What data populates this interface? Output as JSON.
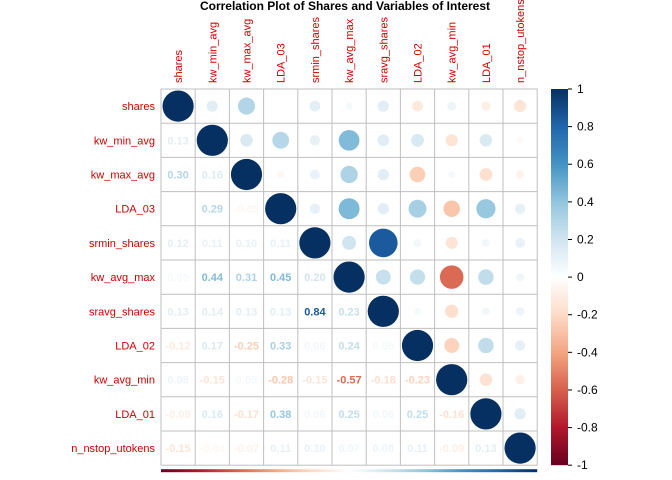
{
  "chart_data": {
    "type": "heatmap",
    "title": "Correlation Plot of Shares and Variables of Interest",
    "variables": [
      "shares",
      "kw_min_avg",
      "kw_max_avg",
      "LDA_03",
      "srmin_shares",
      "kw_avg_max",
      "sravg_shares",
      "LDA_02",
      "kw_avg_min",
      "LDA_01",
      "n_nstop_utokens"
    ],
    "matrix": [
      [
        1.0,
        0.13,
        0.3,
        0.01,
        0.12,
        0.05,
        0.13,
        -0.12,
        0.08,
        -0.09,
        -0.15
      ],
      [
        0.13,
        1.0,
        0.16,
        0.29,
        0.11,
        0.44,
        0.14,
        0.17,
        -0.15,
        0.16,
        -0.04
      ],
      [
        0.3,
        0.16,
        1.0,
        -0.05,
        0.1,
        0.31,
        0.13,
        -0.25,
        0.05,
        -0.17,
        -0.07
      ],
      [
        0.01,
        0.29,
        -0.05,
        1.0,
        0.11,
        0.45,
        0.13,
        0.33,
        -0.28,
        0.38,
        0.11
      ],
      [
        0.12,
        0.11,
        0.1,
        0.11,
        1.0,
        0.2,
        0.84,
        0.06,
        -0.15,
        0.06,
        0.1
      ],
      [
        0.05,
        0.44,
        0.31,
        0.45,
        0.2,
        1.0,
        0.23,
        0.24,
        -0.57,
        0.25,
        0.07
      ],
      [
        0.13,
        0.14,
        0.13,
        0.13,
        0.84,
        0.23,
        1.0,
        0.05,
        -0.18,
        0.06,
        0.08
      ],
      [
        -0.12,
        0.17,
        -0.25,
        0.33,
        0.06,
        0.24,
        0.05,
        1.0,
        -0.23,
        0.25,
        0.11
      ],
      [
        0.08,
        -0.15,
        0.05,
        -0.28,
        -0.15,
        -0.57,
        -0.18,
        -0.23,
        1.0,
        -0.16,
        -0.09
      ],
      [
        -0.09,
        0.16,
        -0.17,
        0.38,
        0.06,
        0.25,
        0.06,
        0.25,
        -0.16,
        1.0,
        0.13
      ],
      [
        -0.15,
        -0.04,
        -0.07,
        0.11,
        0.1,
        0.07,
        0.08,
        0.11,
        -0.09,
        0.13,
        1.0
      ]
    ],
    "lower": "number",
    "upper": "circle",
    "diagonal": "circle",
    "colorbar": {
      "range": [
        -1,
        1
      ],
      "ticks": [
        "1",
        "0.8",
        "0.6",
        "0.4",
        "0.2",
        "0",
        "-0.2",
        "-0.4",
        "-0.6",
        "-0.8",
        "-1"
      ],
      "colors": [
        "#67001F",
        "#B2182B",
        "#D6604D",
        "#F4A582",
        "#FDDBC7",
        "#FFFFFF",
        "#D1E5F0",
        "#92C5DE",
        "#4393C3",
        "#2166AC",
        "#053061"
      ],
      "placement": "right"
    },
    "label_color": "#CC0000",
    "grid": true
  }
}
